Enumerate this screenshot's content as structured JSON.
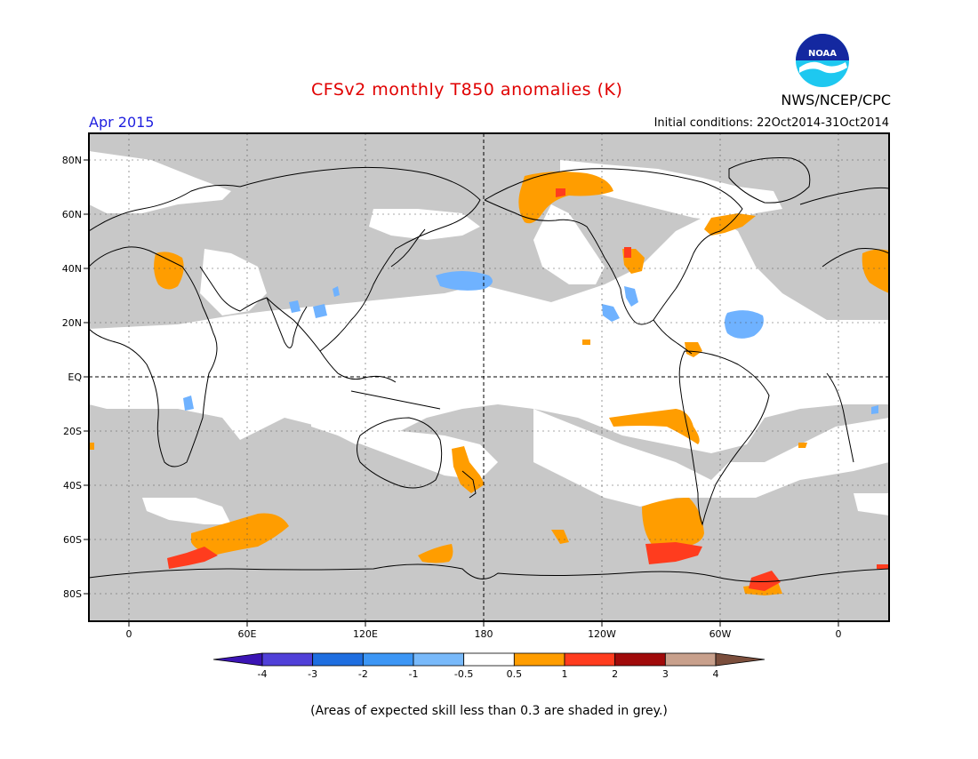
{
  "header": {
    "title": "CFSv2 monthly T850 anomalies (K)",
    "month": "Apr 2015",
    "agency": "NWS/NCEP/CPC",
    "initial_conditions": "Initial conditions: 22Oct2014-31Oct2014",
    "logo_text": "NOAA"
  },
  "map": {
    "lat_labels": [
      "80N",
      "60N",
      "40N",
      "20N",
      "EQ",
      "20S",
      "40S",
      "60S",
      "80S"
    ],
    "lon_labels": [
      "0",
      "60E",
      "120E",
      "180",
      "120W",
      "60W",
      "0"
    ],
    "colors": {
      "skill_grey": "#c8c8c8",
      "orange": "#ff9d00",
      "red": "#ff3c1e",
      "light_blue": "#6fb2ff"
    }
  },
  "colorbar": {
    "labels": [
      "-4",
      "-3",
      "-2",
      "-1",
      "-0.5",
      "0.5",
      "1",
      "2",
      "3",
      "4"
    ],
    "colors": [
      "#3b14b4",
      "#5040d8",
      "#1e6ee0",
      "#3c96f5",
      "#78b9fa",
      "#ffffff",
      "#ff9d00",
      "#ff3c1e",
      "#a00a0a",
      "#c8a08c",
      "#7b4e3c"
    ]
  },
  "footnote": "(Areas of expected skill less than 0.3 are shaded in grey.)"
}
